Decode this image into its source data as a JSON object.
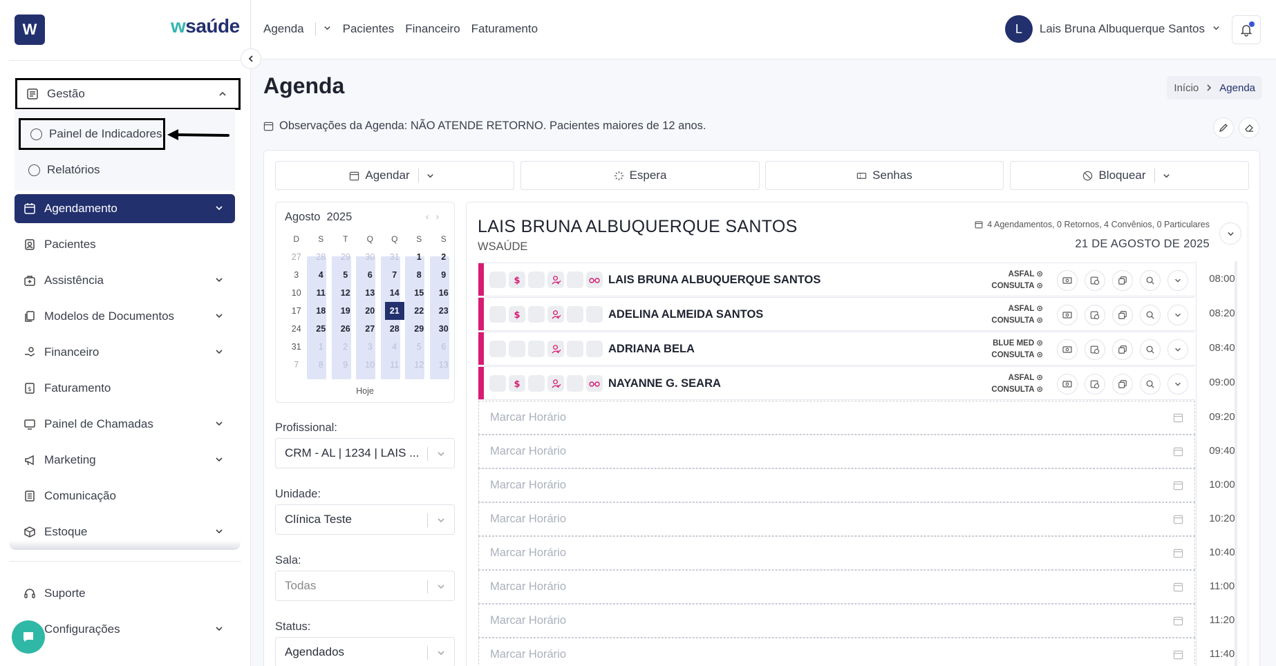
{
  "brand": {
    "logo_letter": "W",
    "name_prefix": "w",
    "name_suffix": "saúde"
  },
  "sidebar": {
    "gestao": "Gestão",
    "gestao_sub": [
      "Painel de Indicadores",
      "Relatórios"
    ],
    "items": [
      "Agendamento",
      "Pacientes",
      "Assistência",
      "Modelos de Documentos",
      "Financeiro",
      "Faturamento",
      "Painel de Chamadas",
      "Marketing",
      "Comunicação",
      "Estoque"
    ],
    "bottom": [
      "Suporte",
      "Configurações"
    ]
  },
  "topbar": {
    "menu": [
      "Agenda",
      "Pacientes",
      "Financeiro",
      "Faturamento"
    ],
    "user_initial": "L",
    "user_name": "Lais Bruna Albuquerque Santos"
  },
  "page": {
    "title": "Agenda",
    "breadcrumb": [
      "Início",
      "Agenda"
    ],
    "observation": "Observações da Agenda: NÃO ATENDE RETORNO. Pacientes maiores de 12 anos."
  },
  "actions": [
    "Agendar",
    "Espera",
    "Senhas",
    "Bloquear"
  ],
  "calendar": {
    "month": "Agosto",
    "year": "2025",
    "weekdays": [
      "D",
      "S",
      "T",
      "Q",
      "Q",
      "S",
      "S"
    ],
    "weeks": [
      [
        "27",
        "28",
        "29",
        "30",
        "31",
        "1",
        "2"
      ],
      [
        "3",
        "4",
        "5",
        "6",
        "7",
        "8",
        "9"
      ],
      [
        "10",
        "11",
        "12",
        "13",
        "14",
        "15",
        "16"
      ],
      [
        "17",
        "18",
        "19",
        "20",
        "21",
        "22",
        "23"
      ],
      [
        "24",
        "25",
        "26",
        "27",
        "28",
        "29",
        "30"
      ],
      [
        "31",
        "1",
        "2",
        "3",
        "4",
        "5",
        "6"
      ],
      [
        "7",
        "8",
        "9",
        "10",
        "11",
        "12",
        "13"
      ]
    ],
    "selected": "21",
    "today_label": "Hoje"
  },
  "filters": {
    "profissional_label": "Profissional:",
    "profissional_value": "CRM - AL | 1234 | LAIS ...",
    "unidade_label": "Unidade:",
    "unidade_value": "Clínica Teste",
    "sala_label": "Sala:",
    "sala_value": "Todas",
    "status_label": "Status:",
    "status_value": "Agendados"
  },
  "schedule": {
    "doctor": "LAIS BRUNA ALBUQUERQUE SANTOS",
    "org": "WSAÚDE",
    "summary": "4 Agendamentos, 0 Retornos, 4 Convênios, 0 Particulares",
    "date": "21 DE AGOSTO DE 2025",
    "appointments": [
      {
        "name": "LAIS BRUNA ALBUQUERQUE SANTOS",
        "plan": "ASFAL",
        "type": "CONSULTA",
        "time": "08:00"
      },
      {
        "name": "ADELINA ALMEIDA SANTOS",
        "plan": "ASFAL",
        "type": "CONSULTA",
        "time": "08:20"
      },
      {
        "name": "ADRIANA BELA",
        "plan": "BLUE MED",
        "type": "CONSULTA",
        "time": "08:40"
      },
      {
        "name": "NAYANNE G. SEARA",
        "plan": "ASFAL",
        "type": "CONSULTA",
        "time": "09:00"
      }
    ],
    "slot_label": "Marcar Horário",
    "slot_times": [
      "09:20",
      "09:40",
      "10:00",
      "10:20",
      "10:40",
      "11:00",
      "11:20",
      "11:40"
    ]
  },
  "colors": {
    "primary": "#23306e",
    "accent": "#d81b72",
    "teal": "#2fb8a5"
  }
}
